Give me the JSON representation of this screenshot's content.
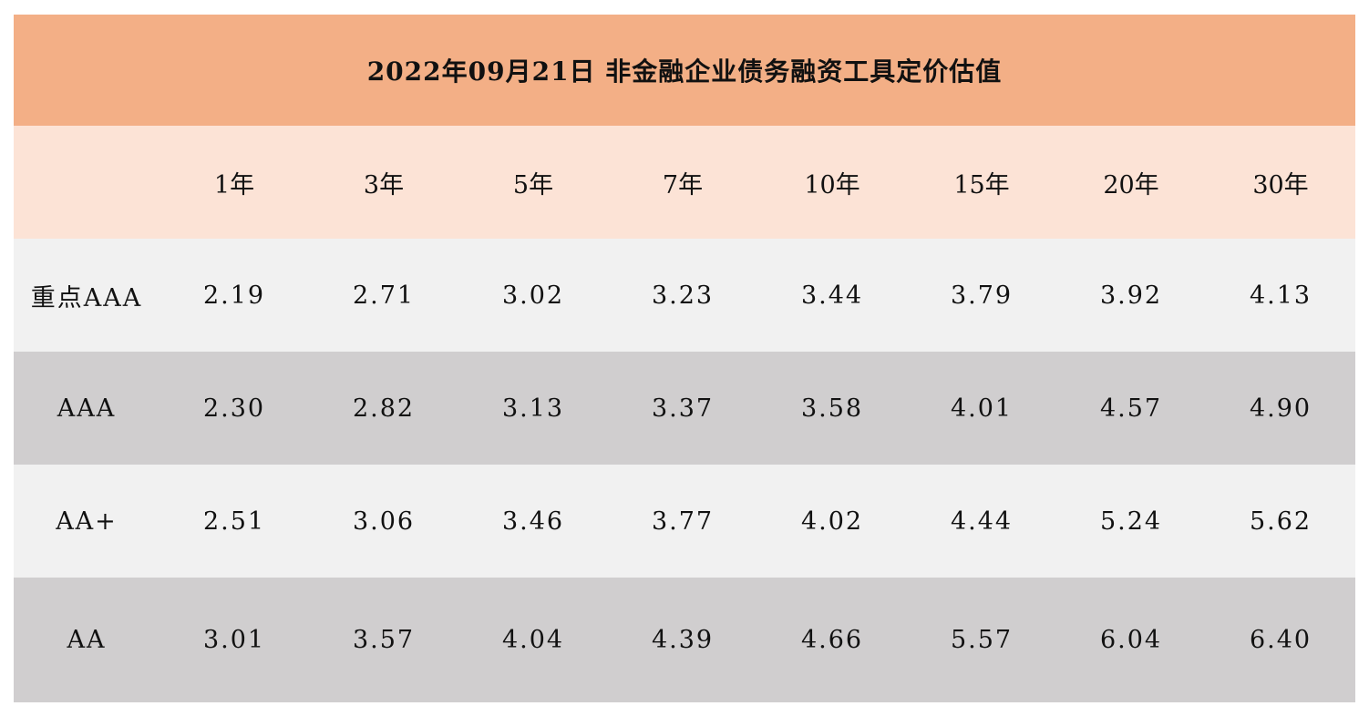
{
  "title": "2022年09月21日  非金融企业债务融资工具定价估值",
  "columns": [
    "",
    "1年",
    "3年",
    "5年",
    "7年",
    "10年",
    "15年",
    "20年",
    "30年"
  ],
  "rows": [
    {
      "label": "重点AAA",
      "values": [
        "2.19",
        "2.71",
        "3.02",
        "3.23",
        "3.44",
        "3.79",
        "3.92",
        "4.13"
      ]
    },
    {
      "label": "AAA",
      "values": [
        "2.30",
        "2.82",
        "3.13",
        "3.37",
        "3.58",
        "4.01",
        "4.57",
        "4.90"
      ]
    },
    {
      "label": "AA+",
      "values": [
        "2.51",
        "3.06",
        "3.46",
        "3.77",
        "4.02",
        "4.44",
        "5.24",
        "5.62"
      ]
    },
    {
      "label": "AA",
      "values": [
        "3.01",
        "3.57",
        "4.04",
        "4.39",
        "4.66",
        "5.57",
        "6.04",
        "6.40"
      ]
    }
  ],
  "colors": {
    "title_bg": "#f3af86",
    "header_bg": "#fce3d6",
    "row_light": "#f1f1f1",
    "row_dark": "#d0cecf"
  }
}
